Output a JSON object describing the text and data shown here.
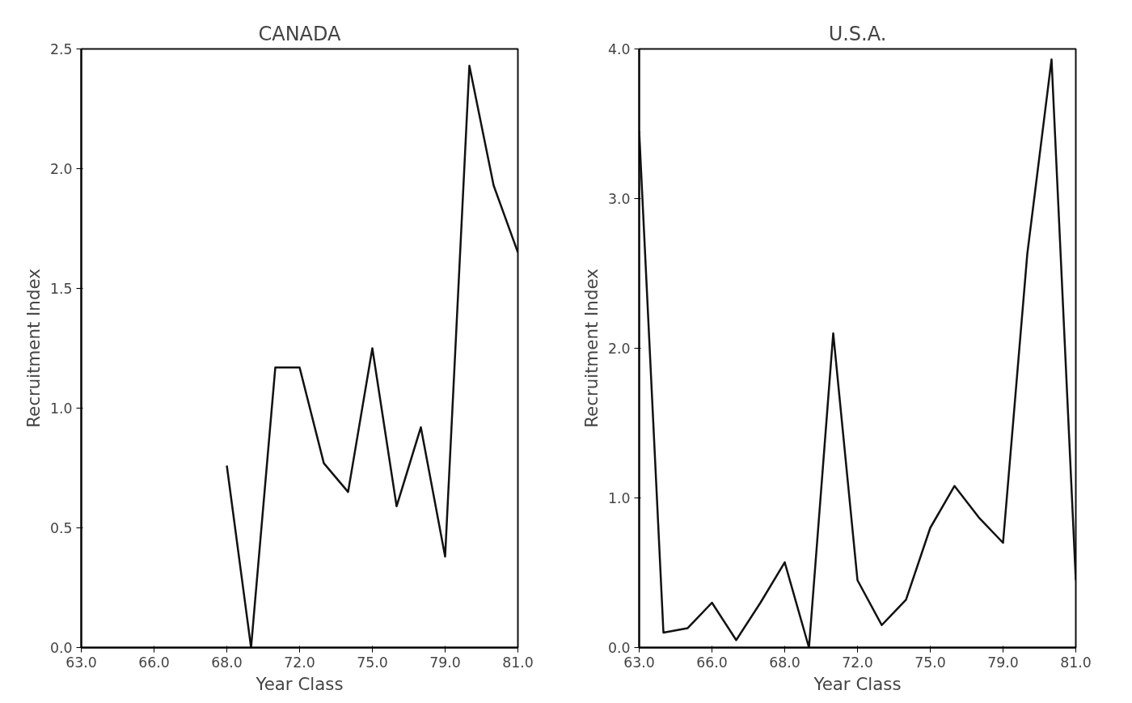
{
  "chart_data": [
    {
      "type": "line",
      "title": "CANADA",
      "xlabel": "Year Class",
      "ylabel": "Recruitment Index",
      "categories": [
        "63.0",
        null,
        null,
        "66.0",
        null,
        null,
        "68.0",
        null,
        null,
        "72.0",
        null,
        null,
        "75.0",
        null,
        null,
        "79.0",
        null,
        null,
        "81.0"
      ],
      "series": [
        {
          "color": "#111111",
          "values": [
            null,
            null,
            null,
            null,
            null,
            null,
            0.76,
            0.0,
            1.17,
            1.17,
            0.77,
            0.65,
            1.25,
            0.59,
            0.92,
            0.38,
            2.43,
            1.93,
            1.65
          ]
        }
      ],
      "ylim": [
        0,
        2.5
      ],
      "yticks": [
        {
          "value": 0,
          "label": "0.0"
        },
        {
          "value": 0.5,
          "label": "0.5"
        },
        {
          "value": 1.0,
          "label": "1.0"
        },
        {
          "value": 1.5,
          "label": "1.5"
        },
        {
          "value": 2.0,
          "label": "2.0"
        },
        {
          "value": 2.5,
          "label": "2.5"
        }
      ]
    },
    {
      "type": "line",
      "title": "U.S.A.",
      "xlabel": "Year Class",
      "ylabel": "Recruitment Index",
      "categories": [
        "63.0",
        null,
        null,
        "66.0",
        null,
        null,
        "68.0",
        null,
        null,
        "72.0",
        null,
        null,
        "75.0",
        null,
        null,
        "79.0",
        null,
        null,
        "81.0"
      ],
      "series": [
        {
          "color": "#111111",
          "values": [
            3.45,
            0.1,
            0.13,
            0.3,
            0.05,
            0.3,
            0.57,
            0.0,
            2.1,
            0.45,
            0.15,
            0.32,
            0.8,
            1.08,
            0.87,
            0.7,
            2.63,
            3.93,
            0.45
          ]
        }
      ],
      "ylim": [
        0,
        4
      ],
      "yticks": [
        {
          "value": 0,
          "label": "0.0"
        },
        {
          "value": 1,
          "label": "1.0"
        },
        {
          "value": 2,
          "label": "2.0"
        },
        {
          "value": 3,
          "label": "3.0"
        },
        {
          "value": 4,
          "label": "4.0"
        }
      ]
    }
  ]
}
